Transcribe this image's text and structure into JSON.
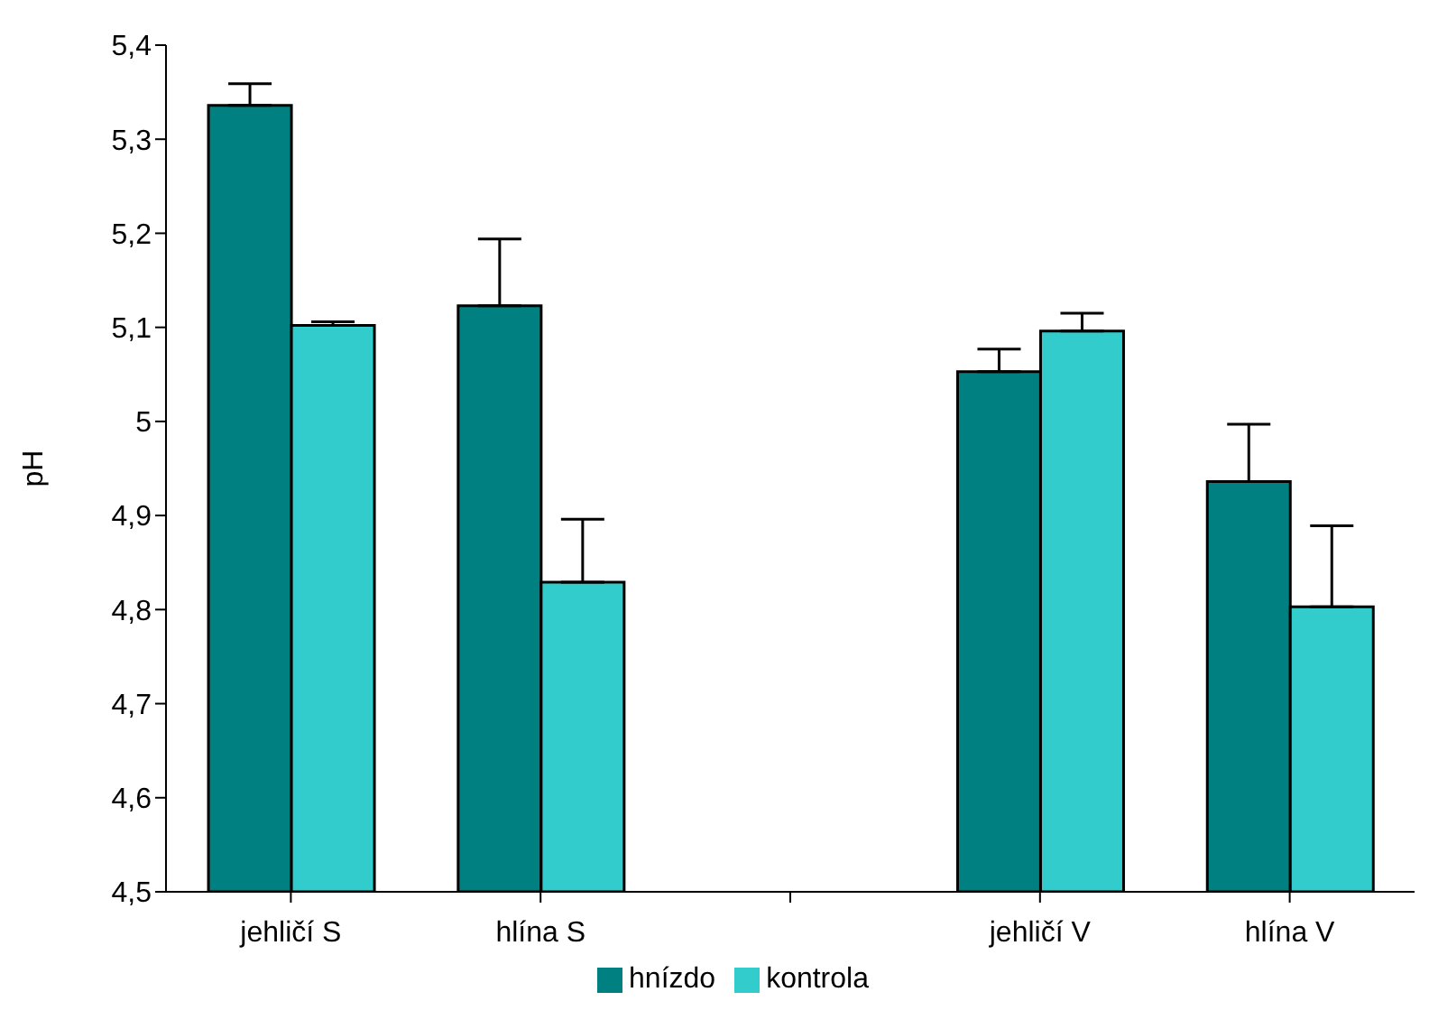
{
  "chart_data": {
    "type": "bar",
    "ylabel": "pH",
    "categories": [
      "jehličí S",
      "hlína S",
      null,
      "jehličí V",
      "hlína V"
    ],
    "series": [
      {
        "name": "hnízdo",
        "color": "#008080",
        "values": [
          5.336,
          5.123,
          null,
          5.053,
          4.936
        ],
        "errors": [
          [
            5.336,
            5.359
          ],
          [
            5.123,
            5.194
          ],
          null,
          [
            5.053,
            5.077
          ],
          [
            4.936,
            4.997
          ]
        ]
      },
      {
        "name": "kontrola",
        "color": "#33cccc",
        "values": [
          5.102,
          4.829,
          null,
          5.096,
          4.803
        ],
        "errors": [
          [
            5.102,
            5.106
          ],
          [
            4.829,
            4.896
          ],
          null,
          [
            5.096,
            5.115
          ],
          [
            4.803,
            4.889
          ]
        ]
      }
    ],
    "ylim": [
      4.5,
      5.4
    ],
    "yticks": [
      {
        "value": 4.5,
        "label": "4,5"
      },
      {
        "value": 4.6,
        "label": "4,6"
      },
      {
        "value": 4.7,
        "label": "4,7"
      },
      {
        "value": 4.8,
        "label": "4,8"
      },
      {
        "value": 4.9,
        "label": "4,9"
      },
      5,
      {
        "value": 5.1,
        "label": "5,1"
      },
      {
        "value": 5.2,
        "label": "5,2"
      },
      {
        "value": 5.3,
        "label": "5,3"
      },
      {
        "value": 5.4,
        "label": "5,4"
      }
    ],
    "grid": false,
    "legend": "bottom"
  }
}
